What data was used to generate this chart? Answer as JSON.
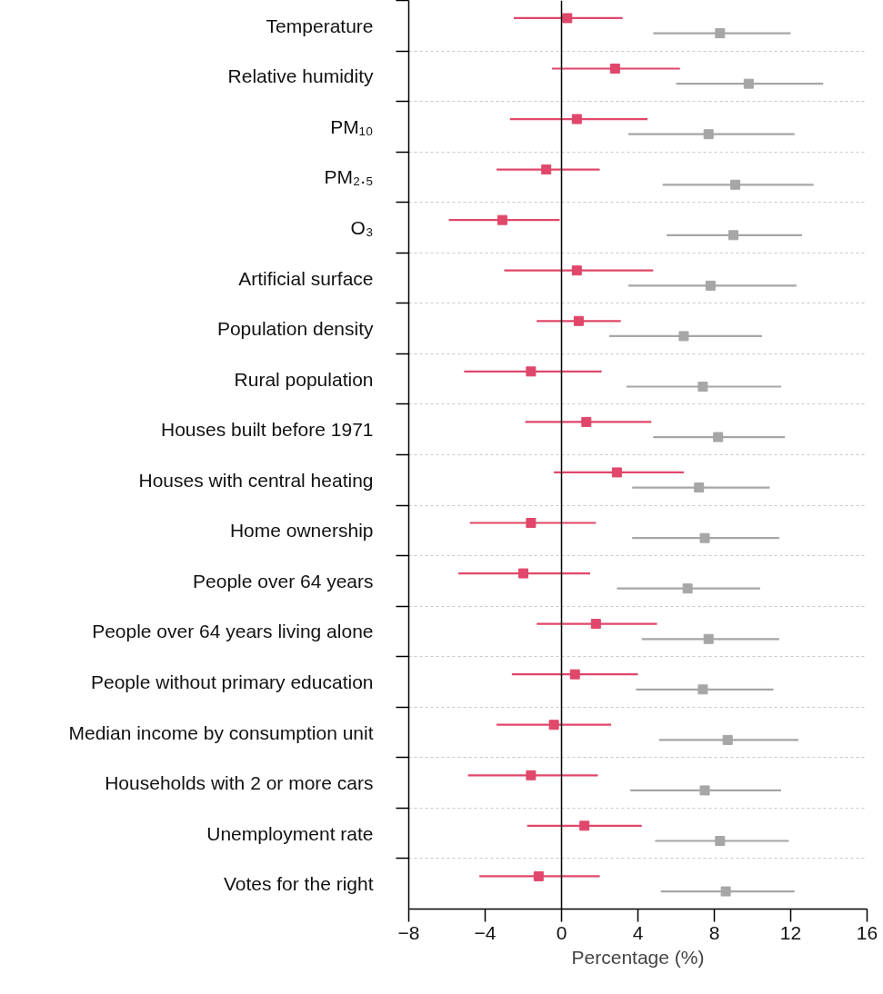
{
  "chart_data": {
    "type": "scatter",
    "orientation": "horizontal",
    "xlabel": "Percentage (%)",
    "categories": [
      "Temperature",
      "Relative humidity",
      "PM₁₀",
      "PM₂.₅",
      "O₃",
      "Artificial surface",
      "Population density",
      "Rural population",
      "Houses built before 1971",
      "Houses with central heating",
      "Home ownership",
      "People over 64 years",
      "People over 64 years living alone",
      "People without primary education",
      "Median income by consumption unit",
      "Households with 2 or more cars",
      "Unemployment rate",
      "Votes for the right"
    ],
    "series": [
      {
        "color": "#e0476a",
        "values": [
          0.3,
          2.8,
          0.8,
          -0.8,
          -3.1,
          0.8,
          0.9,
          -1.6,
          1.3,
          2.9,
          -1.6,
          -2.0,
          1.8,
          0.7,
          -0.4,
          -1.6,
          1.2,
          -1.2
        ],
        "errors": [
          [
            -2.5,
            3.2
          ],
          [
            -0.5,
            6.2
          ],
          [
            -2.7,
            4.5
          ],
          [
            -3.4,
            2.0
          ],
          [
            -5.9,
            -0.1
          ],
          [
            -3.0,
            4.8
          ],
          [
            -1.3,
            3.1
          ],
          [
            -5.1,
            2.1
          ],
          [
            -1.9,
            4.7
          ],
          [
            -0.4,
            6.4
          ],
          [
            -4.8,
            1.8
          ],
          [
            -5.4,
            1.5
          ],
          [
            -1.3,
            5.0
          ],
          [
            -2.6,
            4.0
          ],
          [
            -3.4,
            2.6
          ],
          [
            -4.9,
            1.9
          ],
          [
            -1.8,
            4.2
          ],
          [
            -4.3,
            2.0
          ]
        ]
      },
      {
        "color": "#a6a6a6",
        "values": [
          8.3,
          9.8,
          7.7,
          9.1,
          9.0,
          7.8,
          6.4,
          7.4,
          8.2,
          7.2,
          7.5,
          6.6,
          7.7,
          7.4,
          8.7,
          7.5,
          8.3,
          8.6
        ],
        "errors": [
          [
            4.8,
            12.0
          ],
          [
            6.0,
            13.7
          ],
          [
            3.5,
            12.2
          ],
          [
            5.3,
            13.2
          ],
          [
            5.5,
            12.6
          ],
          [
            3.5,
            12.3
          ],
          [
            2.5,
            10.5
          ],
          [
            3.4,
            11.5
          ],
          [
            4.8,
            11.7
          ],
          [
            3.7,
            10.9
          ],
          [
            3.7,
            11.4
          ],
          [
            2.9,
            10.4
          ],
          [
            4.2,
            11.4
          ],
          [
            3.9,
            11.1
          ],
          [
            5.1,
            12.4
          ],
          [
            3.6,
            11.5
          ],
          [
            4.9,
            11.9
          ],
          [
            5.2,
            12.2
          ]
        ]
      }
    ],
    "xlim": [
      -8,
      16
    ],
    "xticks": [
      {
        "value": -8,
        "label": "−8"
      },
      {
        "value": -4,
        "label": "−4"
      },
      0,
      4,
      8,
      12,
      16
    ],
    "ref_lines": [
      {
        "axis": "x",
        "value": 0,
        "color": "#000000",
        "line_style": "solid"
      }
    ],
    "grid": "y",
    "marker": "square"
  }
}
